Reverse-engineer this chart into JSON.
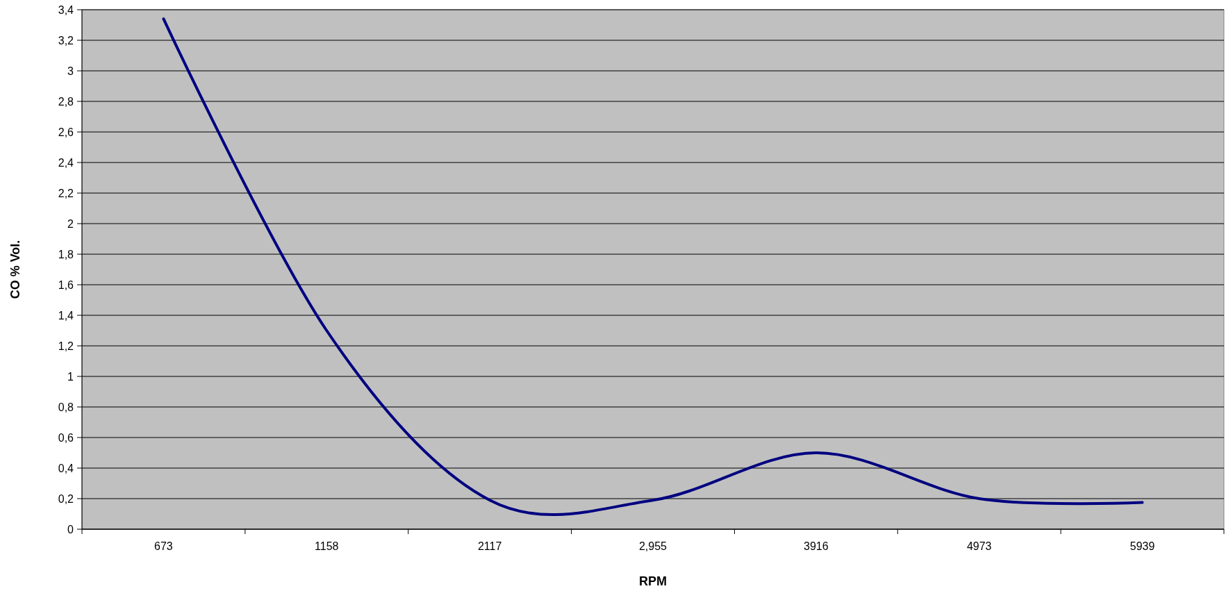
{
  "chart_data": {
    "type": "line",
    "xlabel": "RPM",
    "ylabel": "CO % Vol.",
    "categories": [
      "673",
      "1158",
      "2117",
      "2,955",
      "3916",
      "4973",
      "5939"
    ],
    "series": [
      {
        "color": "#000080",
        "values": [
          3.34,
          1.3,
          0.19,
          0.19,
          0.5,
          0.2,
          0.175
        ]
      }
    ],
    "ylim": [
      0,
      3.4
    ],
    "yticks": [
      0,
      {
        "value": 0.2,
        "label": "0,2"
      },
      {
        "value": 0.4,
        "label": "0,4"
      },
      {
        "value": 0.6,
        "label": "0,6"
      },
      {
        "value": 0.8,
        "label": "0,8"
      },
      1,
      {
        "value": 1.2,
        "label": "1,2"
      },
      {
        "value": 1.4,
        "label": "1,4"
      },
      {
        "value": 1.6,
        "label": "1,6"
      },
      {
        "value": 1.8,
        "label": "1,8"
      },
      2,
      {
        "value": 2.2,
        "label": "2,2"
      },
      {
        "value": 2.4,
        "label": "2,4"
      },
      {
        "value": 2.6,
        "label": "2,6"
      },
      {
        "value": 2.8,
        "label": "2,8"
      },
      3,
      {
        "value": 3.2,
        "label": "3,2"
      },
      {
        "value": 3.4,
        "label": "3,4"
      }
    ],
    "grid": "y",
    "marker": "none",
    "line_style": "solid"
  }
}
